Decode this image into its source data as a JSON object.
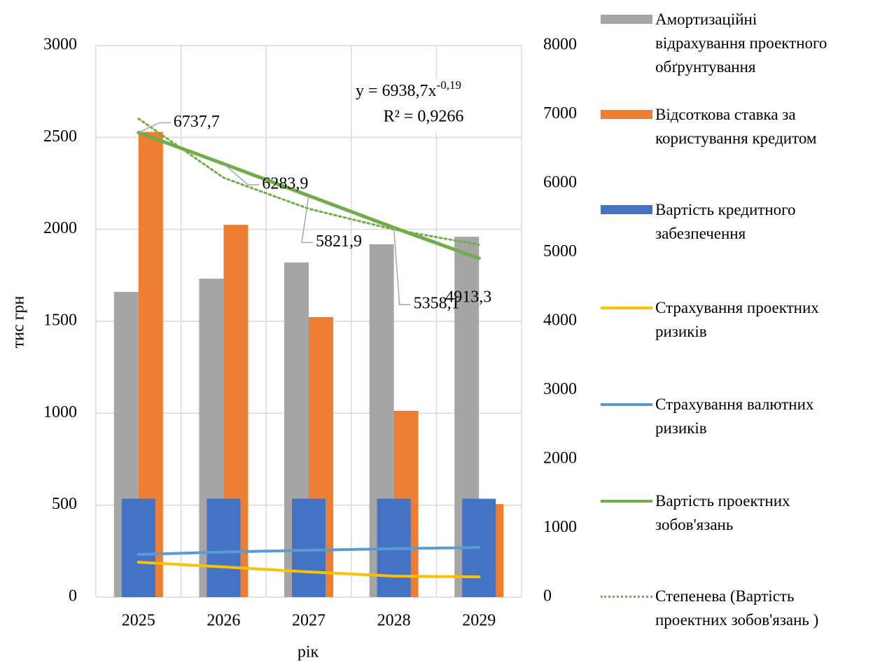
{
  "chart_data": {
    "type": "bar",
    "x_label": "рік",
    "y_label": "тис грн",
    "categories": [
      "2025",
      "2026",
      "2027",
      "2028",
      "2029"
    ],
    "ylim": [
      0,
      3000
    ],
    "yticks": [
      0,
      500,
      1000,
      1500,
      2000,
      2500,
      3000
    ],
    "y2lim": [
      0,
      8000
    ],
    "y2ticks": [
      0,
      1000,
      2000,
      3000,
      4000,
      5000,
      6000,
      7000,
      8000
    ],
    "grid": true,
    "series": [
      {
        "name": "Амортизаційні відрахування проектного обґрунтування",
        "type": "bar",
        "color": "#a5a5a5",
        "values": [
          1660,
          1732,
          1820,
          1919,
          1960
        ]
      },
      {
        "name": "Відсоткова ставка за користування кредитом",
        "type": "bar",
        "color": "#ed7d31",
        "values": [
          2530,
          2025,
          1523,
          1013,
          506
        ]
      },
      {
        "name": "Вартість кредитного забезпечення",
        "type": "bar",
        "color": "#4472c4",
        "values": [
          535,
          535,
          535,
          535,
          535
        ]
      },
      {
        "name": "Страхування проектних ризиків",
        "type": "line",
        "color": "#ffc000",
        "values": [
          190,
          164,
          137,
          114,
          110
        ]
      },
      {
        "name": "Страхування валютних ризиків",
        "type": "line",
        "color": "#5b9bd5",
        "values": [
          232,
          245,
          255,
          263,
          270
        ]
      },
      {
        "name": "Вартість проектних зобов'язань",
        "type": "line",
        "color": "#70ad47",
        "axis": "y2",
        "values": [
          6737.7,
          6283.9,
          5821.9,
          5358.1,
          4913.3
        ],
        "value_labels": [
          "6737,7",
          "6283,9",
          "5821,9",
          "5358,1",
          "4913,3"
        ]
      },
      {
        "name": "Степенева (Вартість проектних зобов'язань )",
        "type": "line",
        "color": "#70ad47",
        "dash": true,
        "axis": "y2",
        "values": [
          6938.7,
          6082,
          5632,
          5332,
          5110
        ]
      }
    ],
    "equation": "y = 6938,7x",
    "equation_exponent": "-0,19",
    "r_squared": "R² = 0,9266"
  }
}
